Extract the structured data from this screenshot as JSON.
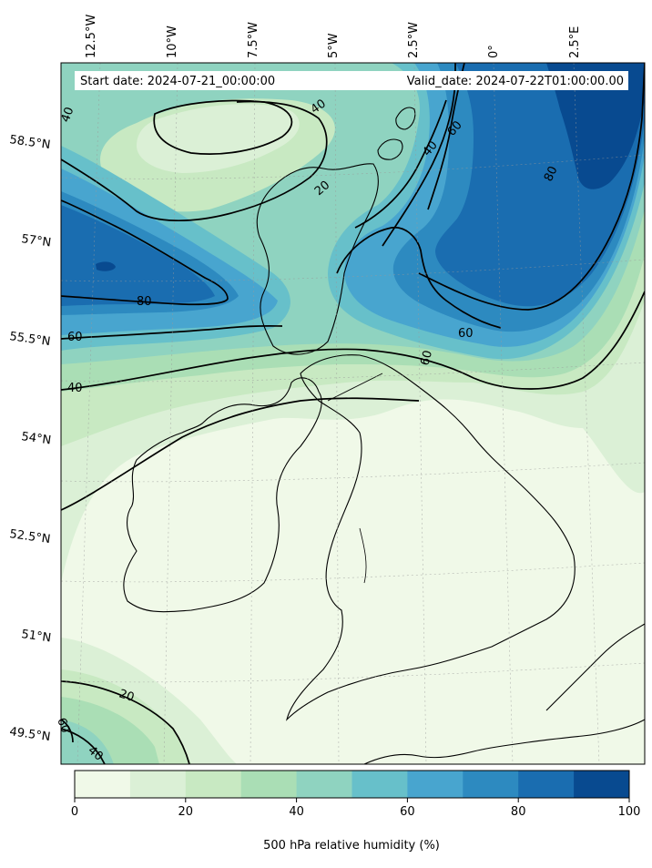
{
  "map": {
    "start_date": "Start date: 2024-07-21_00:00:00",
    "valid_date": "Valid_date: 2024-07-22T01:00:00.00",
    "lon_labels": [
      "12.5°W",
      "10°W",
      "7.5°W",
      "5°W",
      "2.5°W",
      "0°",
      "2.5°E"
    ],
    "lat_labels": [
      "58.5°N",
      "57°N",
      "55.5°N",
      "54°N",
      "52.5°N",
      "51°N",
      "49.5°N"
    ],
    "contour_labels": [
      "40",
      "40",
      "60",
      "80",
      "40",
      "20",
      "80",
      "60",
      "40",
      "60",
      "60",
      "20",
      "60",
      "40"
    ],
    "colorbar": {
      "title": "500 hPa relative humidity (%)",
      "ticks": [
        "0",
        "20",
        "40",
        "60",
        "80",
        "100"
      ],
      "levels": [
        0,
        10,
        20,
        30,
        40,
        50,
        60,
        70,
        80,
        90,
        100
      ],
      "colors": [
        "#f0f9e8",
        "#dbf0d6",
        "#c8e9c2",
        "#aadeb5",
        "#8fd3c0",
        "#67c0ca",
        "#48a5cf",
        "#2d8ac0",
        "#1a6db0",
        "#084a90"
      ]
    }
  }
}
